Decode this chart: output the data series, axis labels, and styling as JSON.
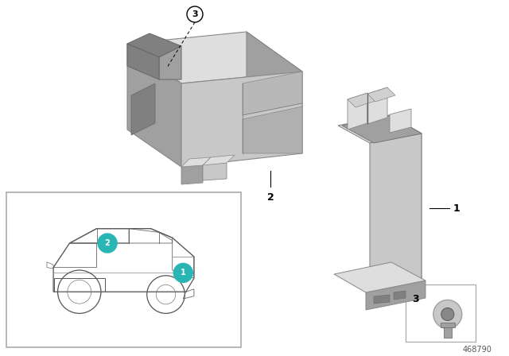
{
  "bg_color": "#ffffff",
  "part_number": "468790",
  "label_color": "#2ab5b5",
  "c_light": "#c8c8c8",
  "c_mid": "#a0a0a0",
  "c_dark": "#808080",
  "c_very_light": "#dedede",
  "c_darker": "#606060"
}
